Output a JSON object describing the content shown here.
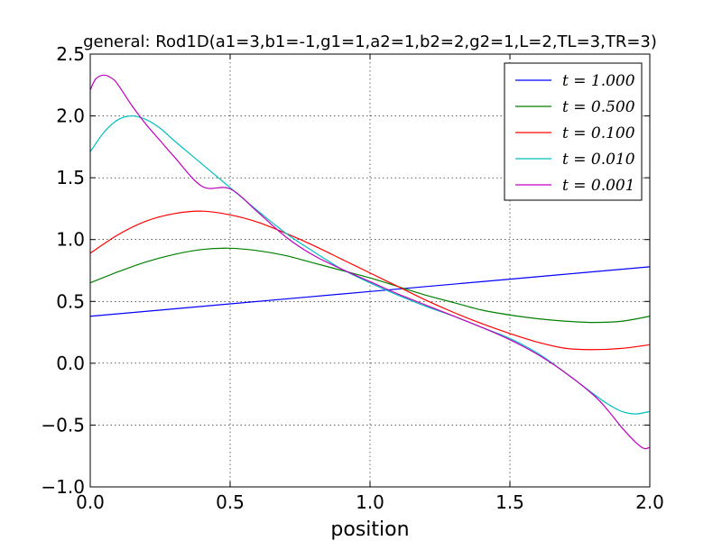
{
  "chart_data": {
    "type": "line",
    "title": "general: Rod1D(a1=3,b1=-1,g1=1,a2=1,b2=2,g2=1,L=2,TL=3,TR=3)",
    "xlabel": "position",
    "ylabel": "",
    "xlim": [
      0.0,
      2.0
    ],
    "ylim": [
      -1.0,
      2.5
    ],
    "xticks": [
      "0.0",
      "0.5",
      "1.0",
      "1.5",
      "2.0"
    ],
    "yticks": [
      "−1.0",
      "−0.5",
      "0.0",
      "0.5",
      "1.0",
      "1.5",
      "2.0",
      "2.5"
    ],
    "grid": true,
    "legend_position": "top-right",
    "series": [
      {
        "name": "t = 1.000",
        "color": "#0000ff",
        "x": [
          0.0,
          0.5,
          1.0,
          1.5,
          2.0
        ],
        "y": [
          0.38,
          0.48,
          0.58,
          0.68,
          0.78
        ]
      },
      {
        "name": "t = 0.500",
        "color": "#008000",
        "x": [
          0.0,
          0.1,
          0.2,
          0.3,
          0.4,
          0.5,
          0.6,
          0.7,
          0.8,
          0.9,
          1.0,
          1.1,
          1.2,
          1.3,
          1.4,
          1.5,
          1.6,
          1.7,
          1.8,
          1.9,
          2.0
        ],
        "y": [
          0.65,
          0.74,
          0.82,
          0.88,
          0.92,
          0.93,
          0.91,
          0.87,
          0.81,
          0.75,
          0.69,
          0.62,
          0.55,
          0.49,
          0.43,
          0.39,
          0.36,
          0.34,
          0.33,
          0.34,
          0.38
        ]
      },
      {
        "name": "t = 0.100",
        "color": "#ff0000",
        "x": [
          0.0,
          0.1,
          0.2,
          0.3,
          0.4,
          0.5,
          0.6,
          0.7,
          0.8,
          0.9,
          1.0,
          1.1,
          1.2,
          1.3,
          1.4,
          1.5,
          1.6,
          1.7,
          1.8,
          1.9,
          2.0
        ],
        "y": [
          0.89,
          1.04,
          1.15,
          1.21,
          1.23,
          1.2,
          1.14,
          1.05,
          0.95,
          0.84,
          0.73,
          0.62,
          0.51,
          0.41,
          0.32,
          0.24,
          0.17,
          0.12,
          0.11,
          0.12,
          0.15
        ]
      },
      {
        "name": "t = 0.010",
        "color": "#00bfbf",
        "x": [
          0.0,
          0.05,
          0.1,
          0.15,
          0.2,
          0.25,
          0.3,
          0.4,
          0.5,
          0.6,
          0.7,
          0.8,
          0.9,
          1.0,
          1.1,
          1.2,
          1.3,
          1.4,
          1.5,
          1.6,
          1.7,
          1.8,
          1.85,
          1.9,
          1.95,
          2.0
        ],
        "y": [
          1.71,
          1.87,
          1.97,
          2.0,
          1.97,
          1.9,
          1.8,
          1.61,
          1.42,
          1.23,
          1.05,
          0.9,
          0.76,
          0.65,
          0.55,
          0.46,
          0.38,
          0.29,
          0.2,
          0.08,
          -0.08,
          -0.25,
          -0.33,
          -0.39,
          -0.41,
          -0.39
        ]
      },
      {
        "name": "t = 0.001",
        "color": "#bf00bf",
        "x": [
          0.0,
          0.02,
          0.05,
          0.08,
          0.1,
          0.15,
          0.2,
          0.25,
          0.3,
          0.4,
          0.5,
          0.6,
          0.7,
          0.8,
          0.9,
          1.0,
          1.1,
          1.2,
          1.3,
          1.4,
          1.5,
          1.6,
          1.7,
          1.8,
          1.85,
          1.9,
          1.95,
          1.98,
          2.0
        ],
        "y": [
          2.21,
          2.3,
          2.33,
          2.3,
          2.25,
          2.08,
          1.93,
          1.8,
          1.67,
          1.43,
          1.41,
          1.22,
          1.02,
          0.87,
          0.76,
          0.66,
          0.56,
          0.47,
          0.38,
          0.29,
          0.19,
          0.07,
          -0.08,
          -0.26,
          -0.38,
          -0.52,
          -0.64,
          -0.69,
          -0.68
        ]
      }
    ]
  }
}
